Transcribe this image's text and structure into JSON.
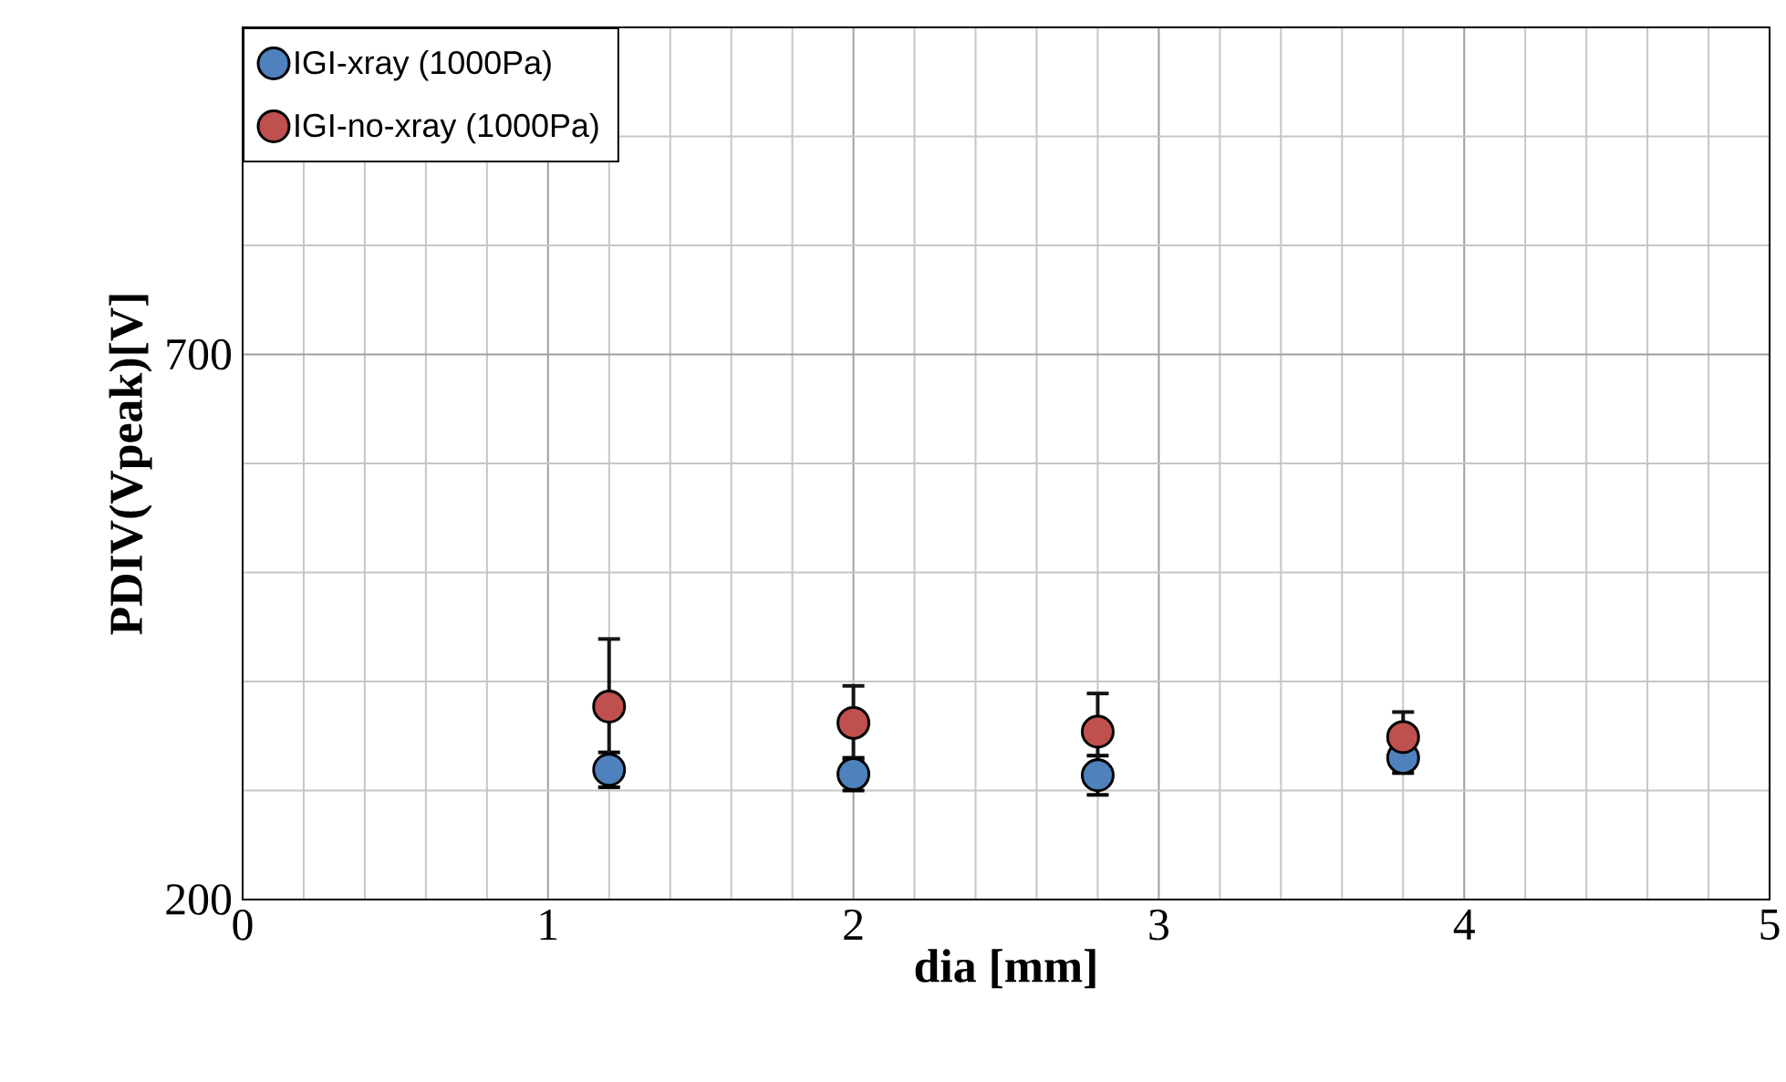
{
  "chart_data": {
    "type": "scatter",
    "xlabel": "dia [mm]",
    "ylabel": "PDIV(Vpeak)[V]",
    "x": [
      1.2,
      2,
      2.8,
      3.8
    ],
    "series": [
      {
        "name": "IGI-xray (1000Pa)",
        "color": "#4f81bd",
        "values": [
          319,
          315,
          314,
          330
        ],
        "errors": [
          16,
          15,
          18,
          14
        ]
      },
      {
        "name": "IGI-no-xray (1000Pa)",
        "color": "#c0504d",
        "values": [
          377,
          362,
          354,
          349
        ],
        "errors": [
          62,
          34,
          35,
          23
        ]
      }
    ],
    "xlim": [
      0,
      5
    ],
    "ylim": [
      200,
      1000
    ],
    "xticks": [
      0,
      {
        "value": 0.2,
        "label": null
      },
      {
        "value": 0.4,
        "label": null
      },
      {
        "value": 0.6,
        "label": null
      },
      {
        "value": 0.8,
        "label": null
      },
      1,
      {
        "value": 1.2,
        "label": null
      },
      {
        "value": 1.4,
        "label": null
      },
      {
        "value": 1.6,
        "label": null
      },
      {
        "value": 1.8,
        "label": null
      },
      2,
      {
        "value": 2.2,
        "label": null
      },
      {
        "value": 2.4,
        "label": null
      },
      {
        "value": 2.6,
        "label": null
      },
      {
        "value": 2.8,
        "label": null
      },
      3,
      {
        "value": 3.2,
        "label": null
      },
      {
        "value": 3.4,
        "label": null
      },
      {
        "value": 3.6,
        "label": null
      },
      {
        "value": 3.8,
        "label": null
      },
      4,
      {
        "value": 4.2,
        "label": null
      },
      {
        "value": 4.4,
        "label": null
      },
      {
        "value": 4.6,
        "label": null
      },
      {
        "value": 4.8,
        "label": null
      },
      5
    ],
    "yticks": [
      200,
      {
        "value": 300,
        "label": null
      },
      {
        "value": 400,
        "label": null
      },
      {
        "value": 500,
        "label": null
      },
      {
        "value": 600,
        "label": null
      },
      700,
      {
        "value": 800,
        "label": null
      },
      {
        "value": 900,
        "label": null
      },
      {
        "value": 1000,
        "label": null
      }
    ],
    "grid": true,
    "legend": "top left"
  }
}
